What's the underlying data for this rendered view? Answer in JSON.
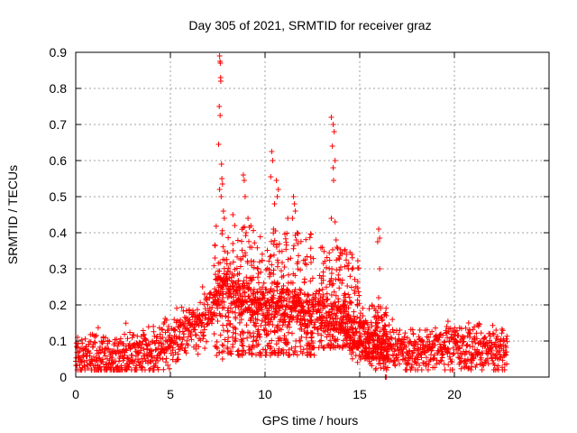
{
  "chart_data": {
    "type": "scatter",
    "title": "Day 305 of 2021, SRMTID for receiver graz",
    "xlabel": "GPS time / hours",
    "ylabel": "SRMTID / TECUs",
    "xlim": [
      0,
      25
    ],
    "ylim": [
      0,
      0.9
    ],
    "xticks": [
      0,
      5,
      10,
      15,
      20
    ],
    "xtick_labels": [
      "0",
      "5",
      "10",
      "15",
      "20"
    ],
    "yticks": [
      0,
      0.1,
      0.2,
      0.3,
      0.4,
      0.5,
      0.6,
      0.7,
      0.8,
      0.9
    ],
    "ytick_labels": [
      "0",
      "0.1",
      "0.2",
      "0.3",
      "0.4",
      "0.5",
      "0.6",
      "0.7",
      "0.8",
      "0.9"
    ],
    "grid": true,
    "marker": "+",
    "marker_color": "#ff0000",
    "baseline_segments": [
      {
        "x": [
          0.0,
          1.0
        ],
        "y": [
          0.06,
          0.06
        ]
      },
      {
        "x": [
          1.0,
          2.5
        ],
        "y": [
          0.055,
          0.055
        ]
      },
      {
        "x": [
          2.5,
          4.5
        ],
        "y": [
          0.07,
          0.065
        ]
      },
      {
        "x": [
          4.5,
          5.2
        ],
        "y": [
          0.09,
          0.1
        ]
      },
      {
        "x": [
          5.2,
          6.5
        ],
        "y": [
          0.11,
          0.14
        ]
      },
      {
        "x": [
          6.5,
          7.2
        ],
        "y": [
          0.14,
          0.18
        ]
      },
      {
        "x": [
          7.2,
          8.0
        ],
        "y": [
          0.2,
          0.25
        ]
      },
      {
        "x": [
          8.0,
          9.5
        ],
        "y": [
          0.25,
          0.2
        ]
      },
      {
        "x": [
          9.5,
          12.5
        ],
        "y": [
          0.2,
          0.18
        ]
      },
      {
        "x": [
          12.5,
          14.5
        ],
        "y": [
          0.18,
          0.15
        ]
      },
      {
        "x": [
          14.5,
          15.5
        ],
        "y": [
          0.12,
          0.09
        ]
      },
      {
        "x": [
          15.5,
          17.0
        ],
        "y": [
          0.09,
          0.08
        ]
      },
      {
        "x": [
          17.0,
          18.7
        ],
        "y": [
          0.08,
          0.06
        ]
      },
      {
        "x": [
          18.7,
          20.0
        ],
        "y": [
          0.07,
          0.08
        ]
      },
      {
        "x": [
          20.0,
          22.8
        ],
        "y": [
          0.08,
          0.07
        ]
      }
    ],
    "baseline_spread": 0.06,
    "points_per_hour": 80,
    "peak_points": [
      {
        "x": 7.6,
        "y": 0.89
      },
      {
        "x": 7.62,
        "y": 0.875
      },
      {
        "x": 7.64,
        "y": 0.87
      },
      {
        "x": 7.65,
        "y": 0.83
      },
      {
        "x": 7.66,
        "y": 0.82
      },
      {
        "x": 7.58,
        "y": 0.75
      },
      {
        "x": 7.63,
        "y": 0.725
      },
      {
        "x": 7.55,
        "y": 0.645
      },
      {
        "x": 7.7,
        "y": 0.59
      },
      {
        "x": 7.72,
        "y": 0.55
      },
      {
        "x": 7.75,
        "y": 0.535
      },
      {
        "x": 7.6,
        "y": 0.52
      },
      {
        "x": 7.68,
        "y": 0.5
      },
      {
        "x": 7.8,
        "y": 0.46
      },
      {
        "x": 7.85,
        "y": 0.44
      },
      {
        "x": 7.75,
        "y": 0.05
      },
      {
        "x": 8.3,
        "y": 0.45
      },
      {
        "x": 8.4,
        "y": 0.42
      },
      {
        "x": 8.85,
        "y": 0.56
      },
      {
        "x": 8.9,
        "y": 0.545
      },
      {
        "x": 8.95,
        "y": 0.5
      },
      {
        "x": 9.1,
        "y": 0.44
      },
      {
        "x": 9.0,
        "y": 0.4
      },
      {
        "x": 9.2,
        "y": 0.36
      },
      {
        "x": 9.4,
        "y": 0.32
      },
      {
        "x": 10.35,
        "y": 0.625
      },
      {
        "x": 10.4,
        "y": 0.6
      },
      {
        "x": 10.3,
        "y": 0.555
      },
      {
        "x": 10.6,
        "y": 0.545
      },
      {
        "x": 10.7,
        "y": 0.52
      },
      {
        "x": 10.65,
        "y": 0.5
      },
      {
        "x": 10.5,
        "y": 0.48
      },
      {
        "x": 10.45,
        "y": 0.41
      },
      {
        "x": 10.55,
        "y": 0.405
      },
      {
        "x": 11.2,
        "y": 0.44
      },
      {
        "x": 11.5,
        "y": 0.5
      },
      {
        "x": 11.55,
        "y": 0.48
      },
      {
        "x": 11.6,
        "y": 0.46
      },
      {
        "x": 11.45,
        "y": 0.44
      },
      {
        "x": 11.7,
        "y": 0.4
      },
      {
        "x": 11.65,
        "y": 0.38
      },
      {
        "x": 13.5,
        "y": 0.72
      },
      {
        "x": 13.6,
        "y": 0.7
      },
      {
        "x": 13.65,
        "y": 0.68
      },
      {
        "x": 13.55,
        "y": 0.64
      },
      {
        "x": 13.7,
        "y": 0.6
      },
      {
        "x": 13.6,
        "y": 0.58
      },
      {
        "x": 13.62,
        "y": 0.545
      },
      {
        "x": 13.5,
        "y": 0.44
      },
      {
        "x": 13.7,
        "y": 0.43
      },
      {
        "x": 13.75,
        "y": 0.38
      },
      {
        "x": 13.8,
        "y": 0.36
      },
      {
        "x": 13.9,
        "y": 0.33
      },
      {
        "x": 14.2,
        "y": 0.35
      },
      {
        "x": 14.3,
        "y": 0.34
      },
      {
        "x": 14.4,
        "y": 0.3
      },
      {
        "x": 16.0,
        "y": 0.41
      },
      {
        "x": 16.05,
        "y": 0.385
      },
      {
        "x": 15.95,
        "y": 0.375
      },
      {
        "x": 16.05,
        "y": 0.3
      },
      {
        "x": 16.0,
        "y": 0.22
      },
      {
        "x": 16.1,
        "y": 0.19
      },
      {
        "x": 16.2,
        "y": 0.16
      },
      {
        "x": 16.35,
        "y": 0.0
      },
      {
        "x": 16.4,
        "y": 0.0
      },
      {
        "x": 19.6,
        "y": 0.14
      },
      {
        "x": 20.8,
        "y": 0.13
      },
      {
        "x": 22.2,
        "y": 0.13
      },
      {
        "x": 4.9,
        "y": 0.13
      },
      {
        "x": 5.4,
        "y": 0.14
      },
      {
        "x": 6.0,
        "y": 0.15
      },
      {
        "x": 6.7,
        "y": 0.25
      },
      {
        "x": 6.8,
        "y": 0.23
      },
      {
        "x": 0.1,
        "y": 0.11
      }
    ],
    "active_bands": [
      {
        "x": [
          7.3,
          9.8
        ],
        "y": [
          0.06,
          0.42
        ]
      },
      {
        "x": [
          9.8,
          12.6
        ],
        "y": [
          0.06,
          0.4
        ]
      },
      {
        "x": [
          12.8,
          15.0
        ],
        "y": [
          0.08,
          0.36
        ]
      },
      {
        "x": [
          15.0,
          16.5
        ],
        "y": [
          0.05,
          0.2
        ]
      }
    ],
    "band_points_per_hour": 90
  }
}
